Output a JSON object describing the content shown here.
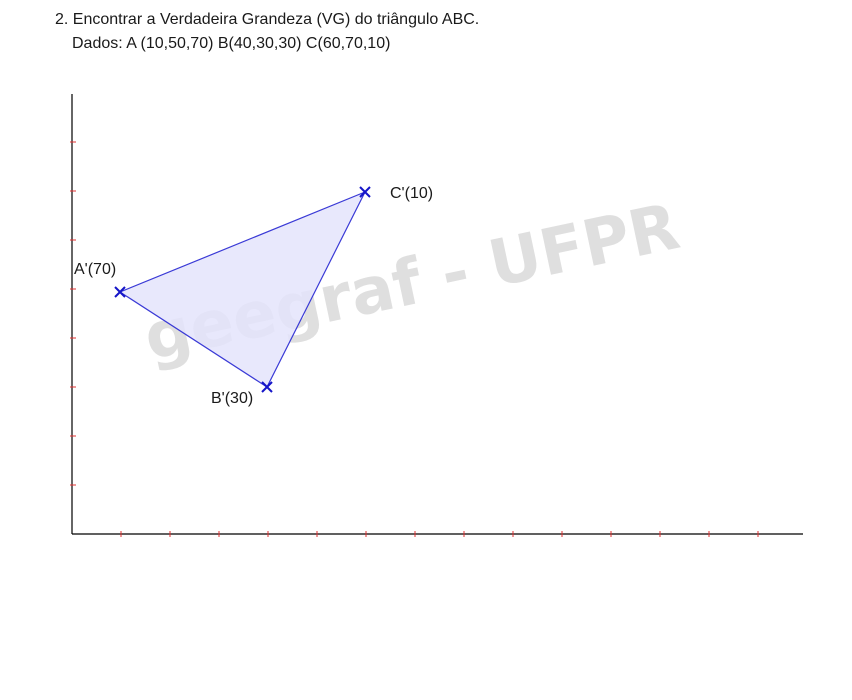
{
  "problem": {
    "statement": "2. Encontrar a Verdadeira Grandeza (VG) do triângulo ABC.",
    "given": "Dados: A (10,50,70)  B(40,30,30) C(60,70,10)"
  },
  "watermark": "geegraf - UFPR",
  "diagram": {
    "points": [
      {
        "id": "A",
        "label": "A'(70)"
      },
      {
        "id": "B",
        "label": "B'(30)"
      },
      {
        "id": "C",
        "label": "C'(10)"
      }
    ],
    "colors": {
      "triangle_fill": "#e4e4fb",
      "triangle_stroke": "#3a3ad6",
      "marker": "#1515c8",
      "axis": "#000000",
      "tick": "#e03030"
    }
  }
}
